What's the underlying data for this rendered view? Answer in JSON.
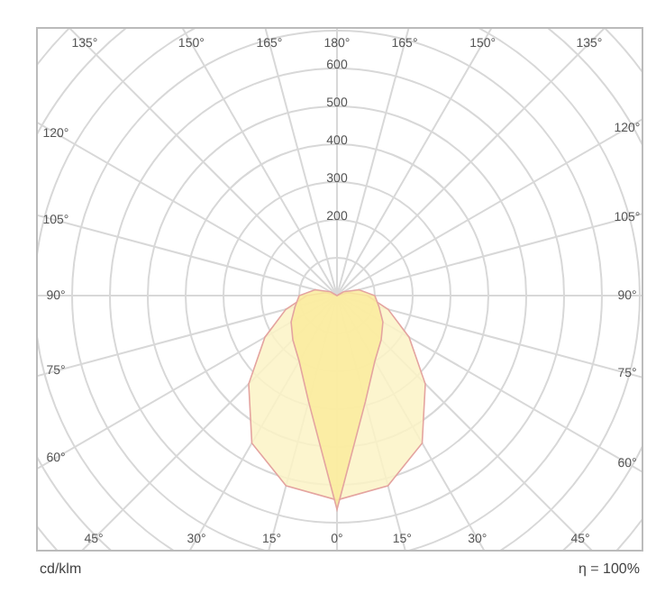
{
  "chart_data": {
    "type": "radar",
    "ylabel": "cd/klm",
    "annotations": [
      "η = 100%"
    ],
    "categories": [
      "180°",
      "165°",
      "150°",
      "135°",
      "120°",
      "105°",
      "90°",
      "75°",
      "60°",
      "45°",
      "30°",
      "15°",
      "0°",
      "15°",
      "30°",
      "45°",
      "60°",
      "75°",
      "90°",
      "105°",
      "120°",
      "135°",
      "150°",
      "165°"
    ],
    "series": [
      {
        "color": "#fcf3c6",
        "values": [
          0,
          0,
          0,
          0,
          0,
          30,
          80,
          140,
          220,
          330,
          450,
          520,
          540,
          520,
          450,
          330,
          220,
          140,
          80,
          30,
          0,
          0,
          0,
          0
        ]
      },
      {
        "color": "#faeb9c",
        "values": [
          0,
          0,
          0,
          0,
          20,
          60,
          100,
          115,
          140,
          165,
          200,
          290,
          565,
          290,
          200,
          165,
          140,
          115,
          100,
          60,
          20,
          0,
          0,
          0
        ]
      }
    ],
    "ylim": [
      0,
      1200
    ],
    "yticks": [
      200,
      300,
      400,
      500,
      600
    ],
    "grid": true,
    "marker": "none"
  }
}
